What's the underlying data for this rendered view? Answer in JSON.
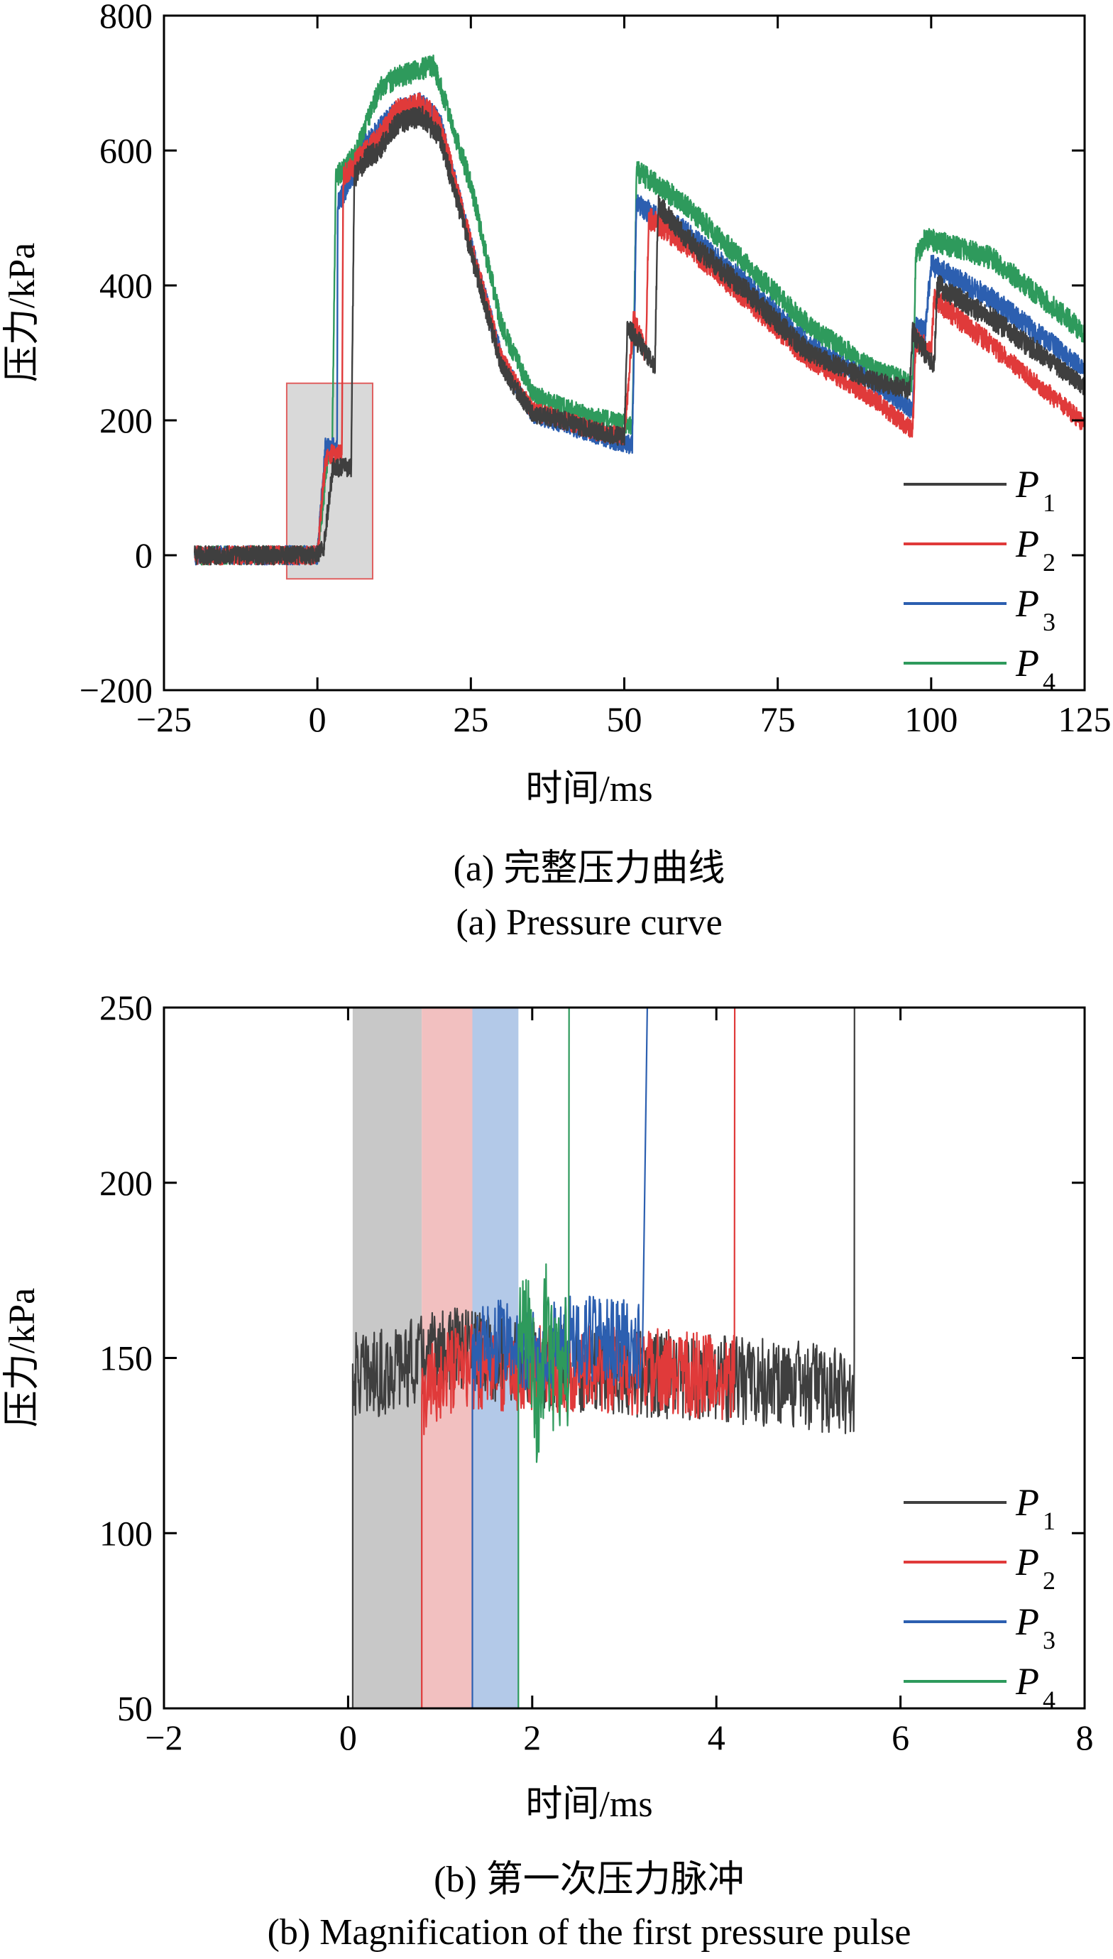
{
  "colors": {
    "P1": "#3f3f3f",
    "P2": "#e03a3a",
    "P3": "#2c5fb0",
    "P4": "#2e9a5c",
    "gray_band": "#c8c8c8",
    "red_band": "#f2c0c0",
    "blue_band": "#b3c9e8",
    "zoom_box_fill": "#d9d9d9",
    "zoom_box_stroke": "#e06060"
  },
  "chart_data": [
    {
      "type": "line",
      "xlabel": "时间/ms",
      "ylabel": "压力/kPa",
      "xlim": [
        -25,
        125
      ],
      "ylim": [
        -200,
        800
      ],
      "xticks": [
        -25,
        0,
        25,
        50,
        75,
        100,
        125
      ],
      "xtick_labels": [
        "−25",
        "0",
        "25",
        "50",
        "75",
        "100",
        "125"
      ],
      "yticks": [
        -200,
        0,
        200,
        400,
        600,
        800
      ],
      "ytick_labels": [
        "−200",
        "0",
        "200",
        "400",
        "600",
        "800"
      ],
      "legend_position": "bottom-right",
      "caption_cn": "(a) 完整压力曲线",
      "caption_en": "(a) Pressure curve",
      "zoom_box": {
        "x": [
          -5,
          9
        ],
        "y": [
          -35,
          255
        ]
      },
      "series": [
        {
          "name": "P",
          "sub": "1",
          "color_key": "P1",
          "x": [
            -20,
            0,
            1,
            2.5,
            3,
            5.5,
            6,
            8,
            10,
            13,
            17,
            20,
            25,
            30,
            35,
            40,
            45,
            50,
            50.5,
            55,
            55.5,
            60,
            70,
            80,
            90,
            96.5,
            97,
            100.5,
            101,
            110,
            125
          ],
          "y": [
            0,
            0,
            10,
            130,
            130,
            130,
            560,
            590,
            600,
            640,
            650,
            620,
            450,
            280,
            210,
            200,
            185,
            175,
            340,
            280,
            520,
            470,
            390,
            300,
            260,
            245,
            330,
            280,
            400,
            350,
            250
          ]
        },
        {
          "name": "P",
          "sub": "2",
          "color_key": "P2",
          "x": [
            -20,
            0,
            1.3,
            2,
            4,
            4.2,
            6,
            8,
            10,
            13,
            17,
            20,
            25,
            30,
            35,
            40,
            45,
            50,
            51.5,
            53.5,
            54,
            60,
            70,
            80,
            90,
            97,
            97.5,
            100,
            100.5,
            110,
            125
          ],
          "y": [
            0,
            0,
            140,
            150,
            150,
            560,
            580,
            600,
            620,
            660,
            670,
            640,
            460,
            290,
            215,
            200,
            185,
            175,
            350,
            300,
            500,
            460,
            380,
            290,
            235,
            185,
            320,
            300,
            380,
            310,
            195
          ]
        },
        {
          "name": "P",
          "sub": "3",
          "color_key": "P3",
          "x": [
            -20,
            0,
            1.3,
            2,
            3.2,
            3.3,
            6,
            8,
            10,
            13,
            17,
            20,
            25,
            30,
            35,
            40,
            45,
            50,
            51.3,
            52,
            60,
            70,
            80,
            90,
            97,
            97.5,
            99,
            100,
            110,
            125
          ],
          "y": [
            0,
            0,
            160,
            160,
            160,
            520,
            570,
            610,
            630,
            660,
            670,
            640,
            460,
            290,
            210,
            195,
            180,
            165,
            165,
            520,
            480,
            400,
            310,
            260,
            215,
            340,
            330,
            430,
            380,
            275
          ]
        },
        {
          "name": "P",
          "sub": "4",
          "color_key": "P4",
          "x": [
            -20,
            0,
            1.8,
            2.2,
            2.4,
            3,
            6,
            8,
            10,
            13,
            17,
            19,
            25,
            30,
            35,
            40,
            45,
            50,
            51.3,
            52,
            60,
            70,
            80,
            90,
            97,
            97.5,
            99,
            110,
            125
          ],
          "y": [
            0,
            0,
            150,
            150,
            150,
            560,
            590,
            640,
            690,
            710,
            720,
            725,
            550,
            340,
            240,
            220,
            205,
            195,
            190,
            570,
            520,
            430,
            340,
            280,
            255,
            440,
            470,
            440,
            330
          ]
        }
      ]
    },
    {
      "type": "line",
      "xlabel": "时间/ms",
      "ylabel": "压力/kPa",
      "xlim": [
        -2,
        8
      ],
      "ylim": [
        50,
        250
      ],
      "xticks": [
        -2,
        0,
        2,
        4,
        6,
        8
      ],
      "xtick_labels": [
        "−2",
        "0",
        "2",
        "4",
        "6",
        "8"
      ],
      "yticks": [
        50,
        100,
        150,
        200,
        250
      ],
      "ytick_labels": [
        "50",
        "100",
        "150",
        "200",
        "250"
      ],
      "legend_position": "bottom-right",
      "caption_cn": "(b) 第一次压力脉冲",
      "caption_en": "(b) Magnification of the first pressure pulse",
      "bands": [
        {
          "x": [
            0.05,
            0.8
          ],
          "color_key": "gray_band"
        },
        {
          "x": [
            0.8,
            1.35
          ],
          "color_key": "red_band"
        },
        {
          "x": [
            1.35,
            1.85
          ],
          "color_key": "blue_band"
        }
      ],
      "series": [
        {
          "name": "P",
          "sub": "1",
          "color_key": "P1",
          "x": [
            0.05,
            0.3,
            0.6,
            0.8,
            1.2,
            1.6,
            2.0,
            2.5,
            3.0,
            3.5,
            4.0,
            4.5,
            5.0,
            5.5
          ],
          "y": [
            145,
            145,
            148,
            150,
            152,
            150,
            148,
            147,
            146,
            145,
            144,
            143,
            142,
            140
          ]
        },
        {
          "name": "P",
          "sub": "2",
          "color_key": "P2",
          "x": [
            0.8,
            0.9,
            1.1,
            1.35,
            2.0,
            2.5,
            3.0,
            3.5,
            4.0,
            4.2
          ],
          "y": [
            135,
            142,
            145,
            148,
            147,
            147,
            146,
            146,
            145,
            145
          ]
        },
        {
          "name": "P",
          "sub": "3",
          "color_key": "P3",
          "x": [
            1.35,
            1.6,
            2.0,
            2.4,
            2.8,
            3.2
          ],
          "y": [
            150,
            155,
            152,
            155,
            155,
            153
          ]
        },
        {
          "name": "P",
          "sub": "4",
          "color_key": "P4",
          "x": [
            1.85,
            1.95,
            2.05,
            2.15,
            2.25,
            2.4
          ],
          "y": [
            150,
            165,
            135,
            160,
            145,
            150
          ]
        }
      ],
      "jumps": [
        {
          "series_index": 0,
          "x": 5.5
        },
        {
          "series_index": 1,
          "x": 4.2
        },
        {
          "series_index": 2,
          "x": 3.25
        },
        {
          "series_index": 3,
          "x": 2.4
        }
      ]
    }
  ]
}
